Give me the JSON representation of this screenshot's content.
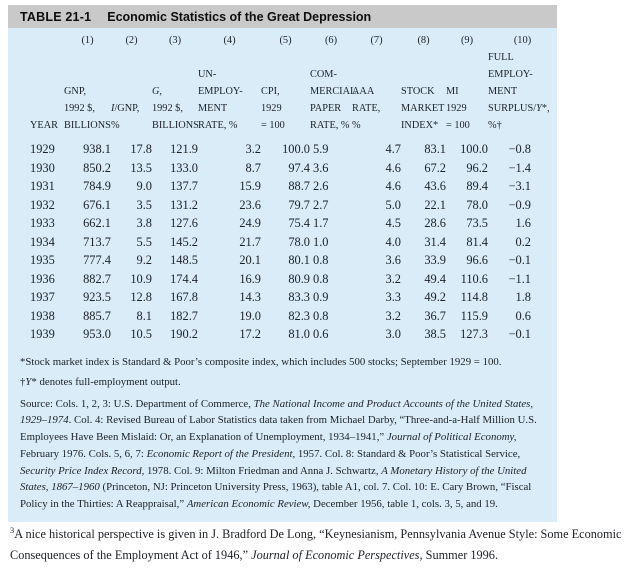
{
  "title": {
    "tag": "TABLE 21-1",
    "text": "Economic Statistics of the Great Depression"
  },
  "table": {
    "columns": [
      {
        "num": "",
        "lines": [
          [
            {
              "t": "YEAR"
            }
          ]
        ]
      },
      {
        "num": "(1)",
        "lines": [
          [
            {
              "t": "GNP,"
            }
          ],
          [
            {
              "t": "1992 $,"
            }
          ],
          [
            {
              "t": "BILLIONS"
            }
          ]
        ]
      },
      {
        "num": "(2)",
        "lines": [
          [
            {
              "t": "I",
              "i": true
            },
            {
              "t": "/GNP,"
            }
          ],
          [
            {
              "t": "%"
            }
          ]
        ]
      },
      {
        "num": "(3)",
        "lines": [
          [
            {
              "t": "G,",
              "i": true
            }
          ],
          [
            {
              "t": "1992 $,"
            }
          ],
          [
            {
              "t": "BILLIONS"
            }
          ]
        ]
      },
      {
        "num": "(4)",
        "lines": [
          [
            {
              "t": "UN-"
            }
          ],
          [
            {
              "t": "EMPLOY-"
            }
          ],
          [
            {
              "t": "MENT"
            }
          ],
          [
            {
              "t": "RATE, %"
            }
          ]
        ]
      },
      {
        "num": "(5)",
        "lines": [
          [
            {
              "t": "CPI,"
            }
          ],
          [
            {
              "t": "1929"
            }
          ],
          [
            {
              "t": "= 100"
            }
          ]
        ]
      },
      {
        "num": "(6)",
        "lines": [
          [
            {
              "t": "COM-"
            }
          ],
          [
            {
              "t": "MERCIAL"
            }
          ],
          [
            {
              "t": "PAPER"
            }
          ],
          [
            {
              "t": "RATE, %"
            }
          ]
        ]
      },
      {
        "num": "(7)",
        "lines": [
          [
            {
              "t": "AAA"
            }
          ],
          [
            {
              "t": "RATE,"
            }
          ],
          [
            {
              "t": "%"
            }
          ]
        ]
      },
      {
        "num": "(8)",
        "lines": [
          [
            {
              "t": "STOCK"
            }
          ],
          [
            {
              "t": "MARKET"
            }
          ],
          [
            {
              "t": "INDEX*"
            }
          ]
        ]
      },
      {
        "num": "(9)",
        "lines": [
          [
            {
              "t": "MI"
            }
          ],
          [
            {
              "t": "1929"
            }
          ],
          [
            {
              "t": "= 100"
            }
          ]
        ]
      },
      {
        "num": "(10)",
        "lines": [
          [
            {
              "t": "FULL"
            }
          ],
          [
            {
              "t": "EMPLOY-"
            }
          ],
          [
            {
              "t": "MENT"
            }
          ],
          [
            {
              "t": "SURPLUS/"
            },
            {
              "t": "Y",
              "i": true
            },
            {
              "t": "*,"
            }
          ],
          [
            {
              "t": "%†"
            }
          ]
        ]
      }
    ],
    "rows": [
      [
        "1929",
        "938.1",
        "17.8",
        "121.9",
        "3.2",
        "100.0",
        "5.9",
        "4.7",
        "83.1",
        "100.0",
        "−0.8"
      ],
      [
        "1930",
        "850.2",
        "13.5",
        "133.0",
        "8.7",
        "97.4",
        "3.6",
        "4.6",
        "67.2",
        "96.2",
        "−1.4"
      ],
      [
        "1931",
        "784.9",
        "9.0",
        "137.7",
        "15.9",
        "88.7",
        "2.6",
        "4.6",
        "43.6",
        "89.4",
        "−3.1"
      ],
      [
        "1932",
        "676.1",
        "3.5",
        "131.2",
        "23.6",
        "79.7",
        "2.7",
        "5.0",
        "22.1",
        "78.0",
        "−0.9"
      ],
      [
        "1933",
        "662.1",
        "3.8",
        "127.6",
        "24.9",
        "75.4",
        "1.7",
        "4.5",
        "28.6",
        "73.5",
        "1.6"
      ],
      [
        "1934",
        "713.7",
        "5.5",
        "145.2",
        "21.7",
        "78.0",
        "1.0",
        "4.0",
        "31.4",
        "81.4",
        "0.2"
      ],
      [
        "1935",
        "777.4",
        "9.2",
        "148.5",
        "20.1",
        "80.1",
        "0.8",
        "3.6",
        "33.9",
        "96.6",
        "−0.1"
      ],
      [
        "1936",
        "882.7",
        "10.9",
        "174.4",
        "16.9",
        "80.9",
        "0.8",
        "3.2",
        "49.4",
        "110.6",
        "−1.1"
      ],
      [
        "1937",
        "923.5",
        "12.8",
        "167.8",
        "14.3",
        "83.3",
        "0.9",
        "3.3",
        "49.2",
        "114.8",
        "1.8"
      ],
      [
        "1938",
        "885.7",
        "8.1",
        "182.7",
        "19.0",
        "82.3",
        "0.8",
        "3.2",
        "36.7",
        "115.9",
        "0.6"
      ],
      [
        "1939",
        "953.0",
        "10.5",
        "190.2",
        "17.2",
        "81.0",
        "0.6",
        "3.0",
        "38.5",
        "127.3",
        "−0.1"
      ]
    ]
  },
  "notes": {
    "footnote_stock": [
      {
        "t": "*Stock market index is Standard & Poor’s composite index, which includes 500 stocks; September 1929 = 100."
      }
    ],
    "footnote_fullemp": [
      {
        "t": "†"
      },
      {
        "t": "Y",
        "i": true
      },
      {
        "t": "* denotes full-employment output."
      }
    ],
    "source": [
      {
        "t": "Source: Cols. 1, 2, 3: U.S. Department of Commerce, "
      },
      {
        "t": "The National Income and Product Accounts of the United States, 1929–1974",
        "i": true
      },
      {
        "t": ". Col. 4: Revised Bureau of Labor Statistics data taken from Michael Darby, “Three-and-a-Half Million U.S. Employees Have Been Mislaid: Or, an Explanation of Unemployment, 1934–1941,” "
      },
      {
        "t": "Journal of Political Economy,",
        "i": true
      },
      {
        "t": " February 1976. Cols. 5, 6, 7: "
      },
      {
        "t": "Economic Report of the President,",
        "i": true
      },
      {
        "t": " 1957. Col. 8: Standard & Poor’s Statistical Service, "
      },
      {
        "t": "Security Price Index Record,",
        "i": true
      },
      {
        "t": " 1978. Col. 9: Milton Friedman and Anna J. Schwartz, "
      },
      {
        "t": "A Monetary History of the United States, 1867–1960",
        "i": true
      },
      {
        "t": " (Princeton, NJ: Princeton University Press, 1963), table A1, col. 7. Col. 10: E. Cary Brown, “Fiscal Policy in the Thirties: A Reappraisal,” "
      },
      {
        "t": "American Economic Review,",
        "i": true
      },
      {
        "t": " December 1956, table 1, cols. 3, 5, and 19."
      }
    ]
  },
  "bottom_note": [
    {
      "t": "3",
      "sup": true
    },
    {
      "t": "A nice historical perspective is given in J. Bradford De Long, “Keynesianism, Pennsylvania Avenue Style: Some Economic Consequences of the Employment Act of 1946,” "
    },
    {
      "t": "Journal of Economic Perspectives,",
      "i": true
    },
    {
      "t": " Summer 1996."
    }
  ],
  "colors": {
    "title_bar": "#c9c9c9",
    "table_background": "#d9ecf8"
  }
}
